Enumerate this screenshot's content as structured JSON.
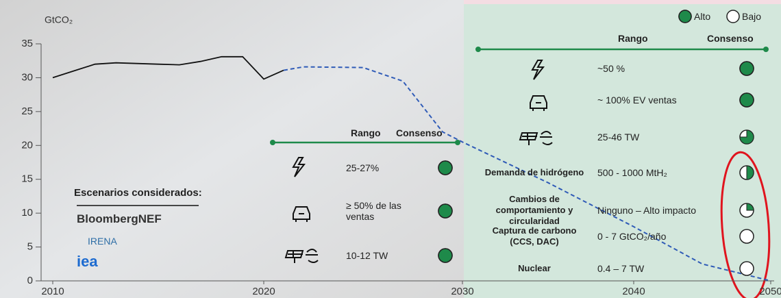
{
  "chart_data": {
    "type": "line",
    "y_label": "GtCO₂",
    "xlim": [
      2010,
      2050
    ],
    "xticks": [
      2010,
      2020,
      2030,
      2040,
      2050
    ],
    "ylim": [
      0,
      35
    ],
    "yticks": [
      0,
      5,
      10,
      15,
      20,
      25,
      30,
      35
    ],
    "series": [
      {
        "color": "#111111",
        "style": "solid",
        "x": [
          2010,
          2011,
          2012,
          2013,
          2014,
          2015,
          2016,
          2017,
          2018,
          2019,
          2020,
          2021
        ],
        "values": [
          30,
          31,
          32,
          32.2,
          32.1,
          32,
          31.9,
          32.4,
          33.1,
          33.1,
          29.8,
          31.1
        ]
      },
      {
        "color": "#2f5bb7",
        "style": "dashed",
        "x": [
          2021,
          2022,
          2025,
          2027,
          2029,
          2030,
          2035,
          2040,
          2045,
          2050
        ],
        "values": [
          31.1,
          31.6,
          31.5,
          29.5,
          22,
          20.5,
          14.5,
          8,
          2.5,
          0
        ]
      }
    ]
  },
  "legend": [
    {
      "label": "Alto",
      "fill": 1
    },
    {
      "label": "Bajo",
      "fill": 0
    }
  ],
  "scenarios": {
    "title": "Escenarios considerados:",
    "sources": [
      "BloombergNEF",
      "IRENA",
      "iea"
    ]
  },
  "table_2030": {
    "headers": [
      "Rango",
      "Consenso"
    ],
    "rows": [
      {
        "range": "25-27%",
        "consensus": 1
      },
      {
        "range": "≥ 50% de las ventas",
        "consensus": 1
      },
      {
        "range": "10-12 TW",
        "consensus": 1
      }
    ]
  },
  "table_2050": {
    "headers": [
      "Rango",
      "Consenso"
    ],
    "rows": [
      {
        "range": "~50 %",
        "consensus": 1
      },
      {
        "range": "~ 100% EV ventas",
        "consensus": 1
      },
      {
        "range": "25-46 TW",
        "consensus": 0.75
      },
      {
        "label": "Demanda de hidrógeno",
        "range": "500 - 1000 MtH₂",
        "consensus": 0.5
      },
      {
        "label": "Cambios de comportamiento y circularidad",
        "range": "Ninguno – Alto impacto",
        "consensus": 0.25
      },
      {
        "label": "Captura de carbono (CCS, DAC)",
        "range": "0 - 7 GtCO₂/año",
        "consensus": 0
      },
      {
        "label": "Nuclear",
        "range": "0.4 – 7 TW",
        "consensus": 0
      }
    ]
  }
}
